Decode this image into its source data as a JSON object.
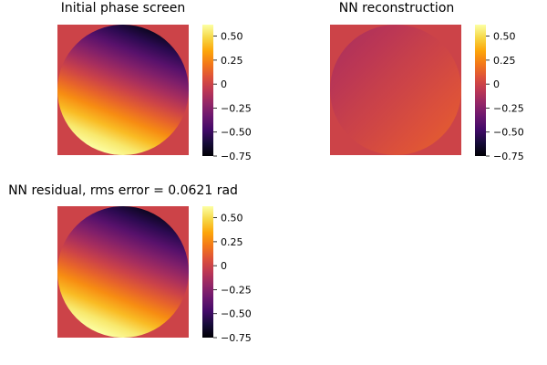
{
  "chart_data": [
    {
      "type": "heatmap",
      "title": "Initial phase screen",
      "content": "tilted phase: dark in upper-left, bright at bottom",
      "aperture": "circular pupil on flat background",
      "tilt": {
        "direction_deg": 112,
        "peak_to_valley": 1.35
      },
      "colorbar": {
        "range": [
          -0.75,
          0.62
        ],
        "ticks": [
          "0.50",
          "0.25",
          "0",
          "−0.25",
          "−0.50",
          "−0.75"
        ],
        "tick_values": [
          0.5,
          0.25,
          0,
          -0.25,
          -0.5,
          -0.75
        ]
      },
      "background_value": 0.0
    },
    {
      "type": "heatmap",
      "title": "NN reconstruction",
      "content": "nearly uniform field close to zero, slightly darker in lower-left",
      "aperture": "circular pupil on flat background",
      "tilt": {
        "direction_deg": 45,
        "peak_to_valley": 0.2
      },
      "colorbar": {
        "range": [
          -0.75,
          0.62
        ],
        "ticks": [
          "0.50",
          "0.25",
          "0",
          "−0.25",
          "−0.50",
          "−0.75"
        ],
        "tick_values": [
          0.5,
          0.25,
          0,
          -0.25,
          -0.5,
          -0.75
        ]
      },
      "background_value": 0.0
    },
    {
      "type": "heatmap",
      "title": "NN residual, rms error = 0.0621 rad",
      "content": "residual nearly identical to the initial phase screen",
      "aperture": "circular pupil on flat background",
      "tilt": {
        "direction_deg": 112,
        "peak_to_valley": 1.35
      },
      "colorbar": {
        "range": [
          -0.75,
          0.62
        ],
        "ticks": [
          "0.50",
          "0.25",
          "0",
          "−0.25",
          "−0.50",
          "−0.75"
        ],
        "tick_values": [
          0.5,
          0.25,
          0,
          -0.25,
          -0.5,
          -0.75
        ]
      },
      "background_value": 0.0
    }
  ],
  "colormap": [
    "#000004",
    "#160b39",
    "#420a68",
    "#6a176e",
    "#932667",
    "#bc3754",
    "#dd513a",
    "#f37819",
    "#fca50a",
    "#f6d746",
    "#fcffa4"
  ]
}
